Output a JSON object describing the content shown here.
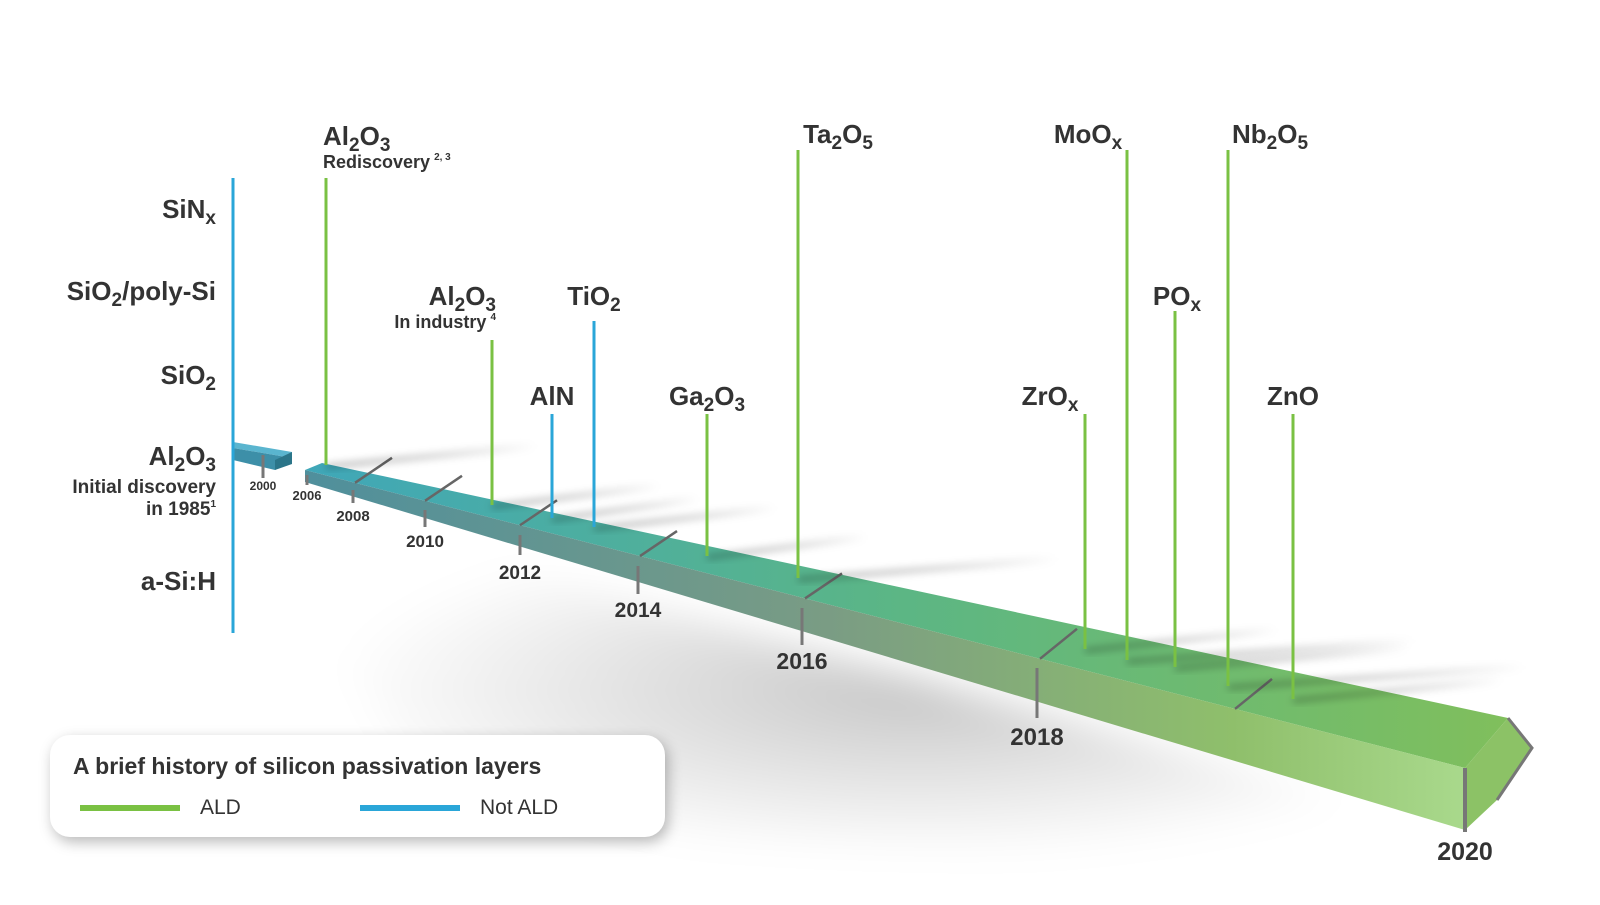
{
  "diagram": {
    "colors": {
      "ald": "#7ac143",
      "not_ald": "#2aa6d8",
      "text": "#333333"
    },
    "left_axis_labels": [
      {
        "base": "SiN",
        "sub": "x"
      },
      {
        "base": "SiO",
        "sub": "2",
        "tail": "/poly-Si"
      },
      {
        "base": "SiO",
        "sub": "2"
      },
      {
        "parts": [
          "Al",
          "2",
          "O",
          "3"
        ],
        "line2": "Initial discovery",
        "line3": "in 1985",
        "sup": "1"
      },
      {
        "base": "a-Si:H"
      }
    ],
    "year_ticks": [
      "2000",
      "2006",
      "2008",
      "2010",
      "2012",
      "2014",
      "2016",
      "2018",
      "2020"
    ],
    "markers": [
      {
        "parts": [
          "Al",
          "2",
          "O",
          "3"
        ],
        "note": "Rediscovery",
        "sup": "2, 3",
        "type": "ALD"
      },
      {
        "parts": [
          "Al",
          "2",
          "O",
          "3"
        ],
        "note": "In industry",
        "sup": "4",
        "type": "ALD"
      },
      {
        "parts": [
          "AlN"
        ],
        "type": "Not ALD"
      },
      {
        "parts": [
          "TiO",
          "2"
        ],
        "type": "Not ALD"
      },
      {
        "parts": [
          "Ga",
          "2",
          "O",
          "3"
        ],
        "type": "ALD"
      },
      {
        "parts": [
          "Ta",
          "2",
          "O",
          "5"
        ],
        "type": "ALD"
      },
      {
        "parts": [
          "ZrO",
          "x"
        ],
        "type": "ALD"
      },
      {
        "parts": [
          "MoO",
          "x"
        ],
        "type": "ALD"
      },
      {
        "parts": [
          "PO",
          "x"
        ],
        "type": "ALD"
      },
      {
        "parts": [
          "Nb",
          "2",
          "O",
          "5"
        ],
        "type": "ALD"
      },
      {
        "parts": [
          "ZnO"
        ],
        "type": "ALD"
      }
    ]
  },
  "legend": {
    "title": "A brief history of silicon passivation layers",
    "ald_label": "ALD",
    "not_ald_label": "Not ALD"
  }
}
